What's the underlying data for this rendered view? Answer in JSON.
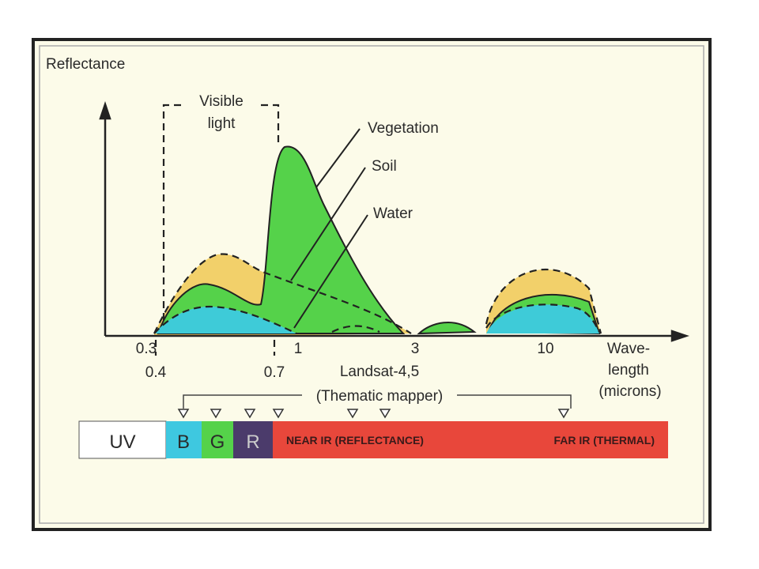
{
  "y_label": "Reflectance",
  "visible_light": [
    "Visible",
    "light"
  ],
  "curve_labels": [
    "Vegetation",
    "Soil",
    "Water"
  ],
  "x_ticks_top": [
    "0.3",
    "1",
    "3",
    "10"
  ],
  "x_ticks_bottom": [
    "0.4",
    "0.7"
  ],
  "x_label": [
    "Wave-",
    "length",
    "(microns)"
  ],
  "landsat": [
    "Landsat-4,5",
    "(Thematic mapper)"
  ],
  "bands": [
    "UV",
    "B",
    "G",
    "R",
    "NEAR IR (REFLECTANCE)",
    "FAR IR (THERMAL)"
  ]
}
